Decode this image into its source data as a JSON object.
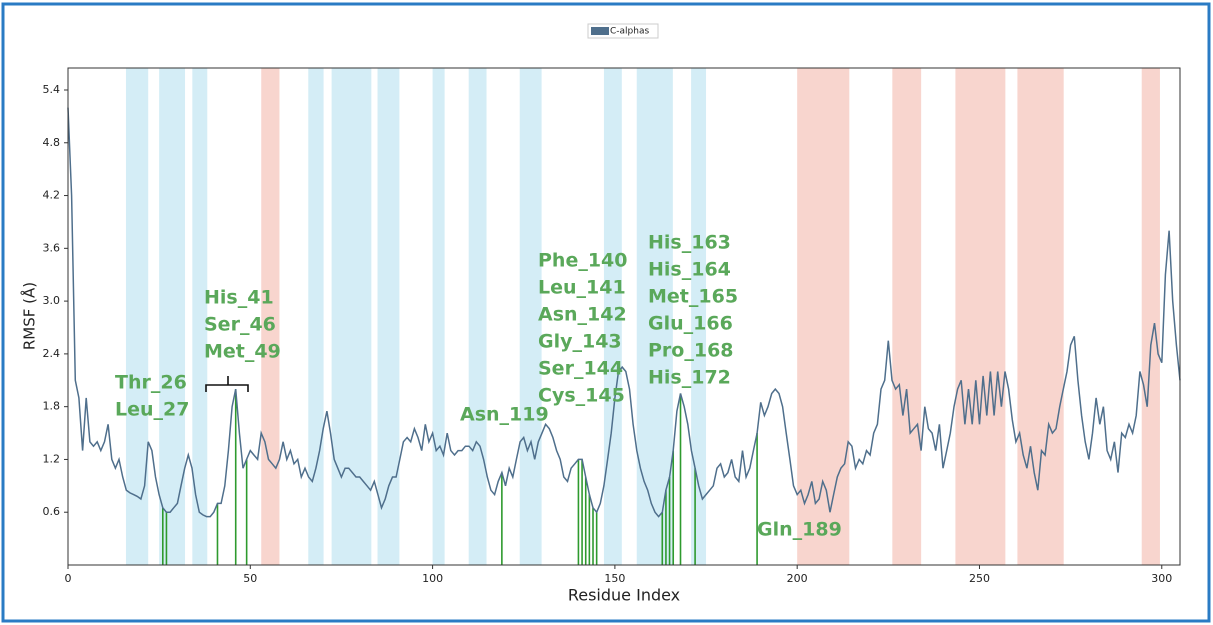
{
  "chart_data": {
    "type": "line",
    "xlabel": "Residue Index",
    "ylabel": "RMSF (Å)",
    "xlim": [
      0,
      305
    ],
    "ylim": [
      0,
      5.65
    ],
    "xticks": [
      0,
      50,
      100,
      150,
      200,
      250,
      300
    ],
    "yticks": [
      0.6,
      1.2,
      1.8,
      2.4,
      {
        "value": 3,
        "label": "3.0"
      },
      3.6,
      4.2,
      4.8,
      5.4
    ],
    "legend": "upper center",
    "strand_color": "#d4edf6",
    "strand_regions": [
      [
        15.9,
        22
      ],
      [
        25,
        32.1
      ],
      [
        34.1,
        38.2
      ],
      [
        65.9,
        70.1
      ],
      [
        72.3,
        83.2
      ],
      [
        84.9,
        90.9
      ],
      [
        100,
        103.3
      ],
      [
        109.9,
        114.8
      ],
      [
        123.9,
        129.9
      ],
      [
        147,
        151.9
      ],
      [
        156,
        165.9
      ],
      [
        170.9,
        175
      ]
    ],
    "helix_color": "#f8d5ce",
    "helix_regions": [
      [
        53,
        58
      ],
      [
        200,
        214.3
      ],
      [
        226.1,
        234
      ],
      [
        243.4,
        257.1
      ],
      [
        260.4,
        273.1
      ],
      [
        294.5,
        299.5
      ]
    ],
    "x": [
      0,
      1,
      2,
      3,
      4,
      5,
      6,
      7,
      8,
      9,
      10,
      11,
      12,
      13,
      14,
      15,
      16,
      17,
      18,
      19,
      20,
      21,
      22,
      23,
      24,
      25,
      26,
      27,
      28,
      29,
      30,
      31,
      32,
      33,
      34,
      35,
      36,
      37,
      38,
      39,
      40,
      41,
      42,
      43,
      44,
      45,
      46,
      47,
      48,
      49,
      50,
      51,
      52,
      53,
      54,
      55,
      56,
      57,
      58,
      59,
      60,
      61,
      62,
      63,
      64,
      65,
      66,
      67,
      68,
      69,
      70,
      71,
      72,
      73,
      74,
      75,
      76,
      77,
      78,
      79,
      80,
      81,
      82,
      83,
      84,
      85,
      86,
      87,
      88,
      89,
      90,
      91,
      92,
      93,
      94,
      95,
      96,
      97,
      98,
      99,
      100,
      101,
      102,
      103,
      104,
      105,
      106,
      107,
      108,
      109,
      110,
      111,
      112,
      113,
      114,
      115,
      116,
      117,
      118,
      119,
      120,
      121,
      122,
      123,
      124,
      125,
      126,
      127,
      128,
      129,
      130,
      131,
      132,
      133,
      134,
      135,
      136,
      137,
      138,
      139,
      140,
      141,
      142,
      143,
      144,
      145,
      146,
      147,
      148,
      149,
      150,
      151,
      152,
      153,
      154,
      155,
      156,
      157,
      158,
      159,
      160,
      161,
      162,
      163,
      164,
      165,
      166,
      167,
      168,
      169,
      170,
      171,
      172,
      173,
      174,
      175,
      176,
      177,
      178,
      179,
      180,
      181,
      182,
      183,
      184,
      185,
      186,
      187,
      188,
      189,
      190,
      191,
      192,
      193,
      194,
      195,
      196,
      197,
      198,
      199,
      200,
      201,
      202,
      203,
      204,
      205,
      206,
      207,
      208,
      209,
      210,
      211,
      212,
      213,
      214,
      215,
      216,
      217,
      218,
      219,
      220,
      221,
      222,
      223,
      224,
      225,
      226,
      227,
      228,
      229,
      230,
      231,
      232,
      233,
      234,
      235,
      236,
      237,
      238,
      239,
      240,
      241,
      242,
      243,
      244,
      245,
      246,
      247,
      248,
      249,
      250,
      251,
      252,
      253,
      254,
      255,
      256,
      257,
      258,
      259,
      260,
      261,
      262,
      263,
      264,
      265,
      266,
      267,
      268,
      269,
      270,
      271,
      272,
      273,
      274,
      275,
      276,
      277,
      278,
      279,
      280,
      281,
      282,
      283,
      284,
      285,
      286,
      287,
      288,
      289,
      290,
      291,
      292,
      293,
      294,
      295,
      296,
      297,
      298,
      299,
      300,
      301,
      302,
      303,
      304,
      305
    ],
    "series": [
      {
        "name": "C-alphas",
        "color": "#4f6f8c",
        "values": [
          5.2,
          4.2,
          2.1,
          1.9,
          1.3,
          1.9,
          1.4,
          1.35,
          1.4,
          1.3,
          1.4,
          1.6,
          1.2,
          1.1,
          1.2,
          1.0,
          0.85,
          0.82,
          0.8,
          0.78,
          0.75,
          0.9,
          1.4,
          1.3,
          1.0,
          0.8,
          0.65,
          0.6,
          0.6,
          0.65,
          0.7,
          0.9,
          1.1,
          1.25,
          1.1,
          0.8,
          0.6,
          0.57,
          0.55,
          0.55,
          0.6,
          0.7,
          0.7,
          0.9,
          1.3,
          1.8,
          2.0,
          1.5,
          1.1,
          1.2,
          1.3,
          1.25,
          1.2,
          1.5,
          1.4,
          1.2,
          1.15,
          1.1,
          1.2,
          1.4,
          1.2,
          1.3,
          1.15,
          1.2,
          1.0,
          1.1,
          1.0,
          0.95,
          1.1,
          1.3,
          1.55,
          1.75,
          1.5,
          1.2,
          1.1,
          1.0,
          1.1,
          1.1,
          1.05,
          1.0,
          1.0,
          0.95,
          0.9,
          0.85,
          0.95,
          0.8,
          0.65,
          0.75,
          0.9,
          1.0,
          1.0,
          1.2,
          1.4,
          1.45,
          1.4,
          1.55,
          1.45,
          1.3,
          1.6,
          1.4,
          1.5,
          1.3,
          1.35,
          1.25,
          1.5,
          1.3,
          1.25,
          1.3,
          1.3,
          1.35,
          1.35,
          1.3,
          1.4,
          1.35,
          1.2,
          1.0,
          0.85,
          0.8,
          0.95,
          1.05,
          0.9,
          1.1,
          1.0,
          1.2,
          1.4,
          1.45,
          1.3,
          1.4,
          1.2,
          1.4,
          1.5,
          1.6,
          1.55,
          1.45,
          1.3,
          1.2,
          1.0,
          0.95,
          1.1,
          1.15,
          1.2,
          1.2,
          1.0,
          0.8,
          0.65,
          0.6,
          0.7,
          0.9,
          1.2,
          1.5,
          1.9,
          2.2,
          2.25,
          2.2,
          2.0,
          1.6,
          1.3,
          1.1,
          0.95,
          0.85,
          0.7,
          0.6,
          0.55,
          0.6,
          0.85,
          1.0,
          1.3,
          1.75,
          1.95,
          1.8,
          1.6,
          1.3,
          1.1,
          0.9,
          0.75,
          0.8,
          0.85,
          0.9,
          1.1,
          1.15,
          1.0,
          1.05,
          1.2,
          1.0,
          0.95,
          1.3,
          1.0,
          1.1,
          1.3,
          1.5,
          1.85,
          1.7,
          1.8,
          1.95,
          2.0,
          1.95,
          1.8,
          1.5,
          1.2,
          0.9,
          0.8,
          0.85,
          0.7,
          0.8,
          0.95,
          0.7,
          0.75,
          0.95,
          0.85,
          0.6,
          0.8,
          1.0,
          1.1,
          1.15,
          1.4,
          1.35,
          1.1,
          1.2,
          1.15,
          1.3,
          1.25,
          1.5,
          1.6,
          2.0,
          2.1,
          2.55,
          2.1,
          2.0,
          2.05,
          1.7,
          2.0,
          1.5,
          1.55,
          1.6,
          1.3,
          1.8,
          1.55,
          1.5,
          1.3,
          1.6,
          1.1,
          1.3,
          1.5,
          1.8,
          2.0,
          2.1,
          1.6,
          2.0,
          1.6,
          2.1,
          1.6,
          2.15,
          1.7,
          2.2,
          1.7,
          2.2,
          1.8,
          2.2,
          2.0,
          1.65,
          1.4,
          1.5,
          1.25,
          1.1,
          1.35,
          1.05,
          0.85,
          1.3,
          1.25,
          1.6,
          1.5,
          1.55,
          1.8,
          2.0,
          2.2,
          2.5,
          2.6,
          2.1,
          1.7,
          1.4,
          1.2,
          1.5,
          1.9,
          1.6,
          1.8,
          1.3,
          1.2,
          1.4,
          1.05,
          1.5,
          1.45,
          1.6,
          1.5,
          1.7,
          2.2,
          2.05,
          1.8,
          2.5,
          2.75,
          2.4,
          2.3,
          3.3,
          3.8,
          3.0,
          2.5,
          2.1
        ]
      }
    ],
    "contacts": {
      "color": "#2e9a2e",
      "label_color": "#5aa85a",
      "residues": [
        26,
        27,
        41,
        46,
        49,
        119,
        140,
        141,
        142,
        143,
        144,
        145,
        163,
        164,
        165,
        166,
        168,
        172,
        189
      ],
      "labels": [
        [
          "Thr_26",
          "Leu_27"
        ],
        [
          "His_41",
          "Ser_46",
          "Met_49"
        ],
        [
          "Asn_119"
        ],
        [
          "Phe_140",
          "Leu_141",
          "Asn_142",
          "Gly_143",
          "Ser_144",
          "Cys_145"
        ],
        [
          "His_163",
          "His_164",
          "Met_165",
          "Glu_166",
          "Pro_168",
          "His_172"
        ],
        [
          "Gln_189"
        ]
      ]
    }
  }
}
